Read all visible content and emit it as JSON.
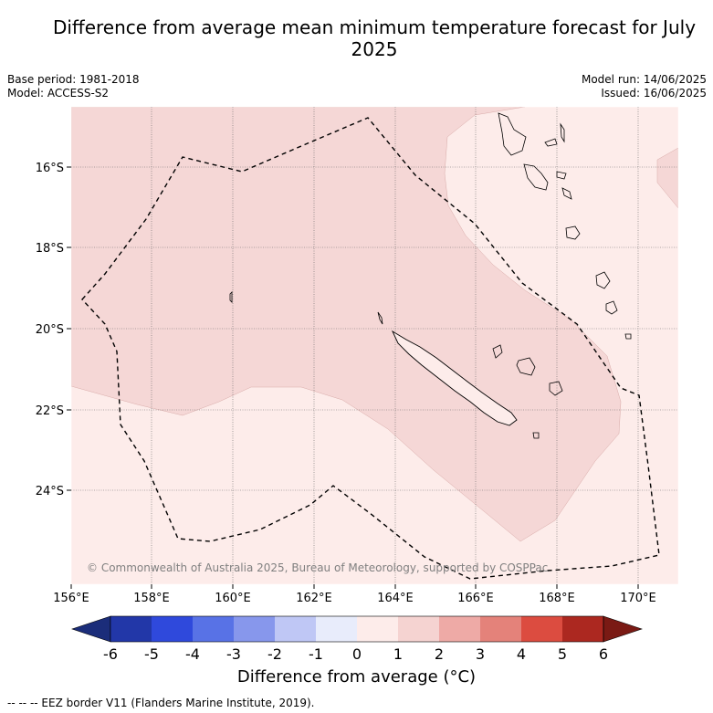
{
  "title": "Difference from average mean minimum temperature forecast for July 2025",
  "base_period": "Base period: 1981-2018",
  "model": "Model: ACCESS-S2",
  "model_run": "Model run: 14/06/2025",
  "issued": "Issued: 16/06/2025",
  "copyright": "© Commonwealth of Australia 2025, Bureau of Meteorology, supported by COSPPac",
  "y_ticks": [
    "16°S",
    "18°S",
    "20°S",
    "22°S",
    "24°S"
  ],
  "x_ticks": [
    "156°E",
    "158°E",
    "160°E",
    "162°E",
    "164°E",
    "166°E",
    "168°E",
    "170°E"
  ],
  "colorbar": {
    "labels": [
      "-6",
      "-5",
      "-4",
      "-3",
      "-2",
      "-1",
      "0",
      "1",
      "2",
      "3",
      "4",
      "5",
      "6"
    ],
    "colors": [
      "#1b2d7a",
      "#2237a8",
      "#2f49dc",
      "#5872e6",
      "#8797ec",
      "#bfc7f5",
      "#e8ecfb",
      "#fdecea",
      "#f5d3d1",
      "#eeaaa6",
      "#e4827a",
      "#dc4c40",
      "#ac2820",
      "#7a1a14"
    ],
    "title": "Difference from average (°C)"
  },
  "legend_colors": {
    "zero_to_one": "#fdecea",
    "one_to_two": "#f5d7d6"
  },
  "footnote": "--  --  -- EEZ border V11 (Flanders Marine Institute, 2019)."
}
